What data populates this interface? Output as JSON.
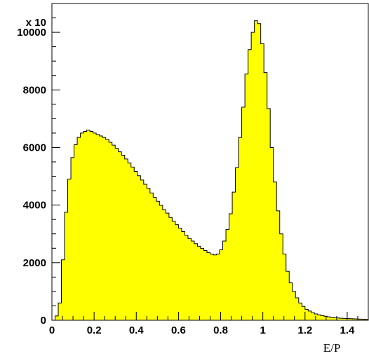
{
  "chart_data": {
    "type": "histogram",
    "xlabel": "E/P",
    "ylabel": "",
    "y_multiplier_label": "x 10",
    "xlim": [
      0,
      1.5
    ],
    "ylim": [
      0,
      11000
    ],
    "x_ticks": [
      0,
      0.2,
      0.4,
      0.6,
      0.8,
      1,
      1.2,
      1.4
    ],
    "x_tick_labels": [
      "0",
      "0.2",
      "0.4",
      "0.6",
      "0.8",
      "1",
      "1.2",
      "1.4"
    ],
    "y_ticks": [
      0,
      2000,
      4000,
      6000,
      8000,
      10000
    ],
    "y_tick_labels": [
      "0",
      "2000",
      "4000",
      "6000",
      "8000",
      "10000"
    ],
    "bin_width": 0.015,
    "bin_start": 0,
    "fill_color": "#ffff00",
    "line_color": "#000000",
    "grid": false,
    "values": [
      0,
      150,
      600,
      2100,
      3750,
      4900,
      5650,
      6100,
      6350,
      6500,
      6560,
      6600,
      6560,
      6500,
      6450,
      6400,
      6350,
      6280,
      6180,
      6080,
      5970,
      5850,
      5730,
      5600,
      5460,
      5320,
      5170,
      5020,
      4870,
      4720,
      4580,
      4420,
      4270,
      4130,
      3990,
      3840,
      3720,
      3570,
      3440,
      3320,
      3200,
      3080,
      2950,
      2840,
      2750,
      2660,
      2570,
      2490,
      2420,
      2350,
      2300,
      2270,
      2300,
      2450,
      2750,
      3150,
      3700,
      4450,
      5300,
      6350,
      7400,
      8550,
      9400,
      10000,
      10400,
      10300,
      9600,
      8600,
      7350,
      6000,
      4800,
      3800,
      3000,
      2300,
      1700,
      1300,
      1000,
      780,
      600,
      480,
      380,
      320,
      260,
      220,
      190,
      160,
      140,
      120,
      100,
      90,
      80,
      70,
      65,
      60,
      55,
      50,
      45,
      40,
      35,
      30
    ]
  }
}
